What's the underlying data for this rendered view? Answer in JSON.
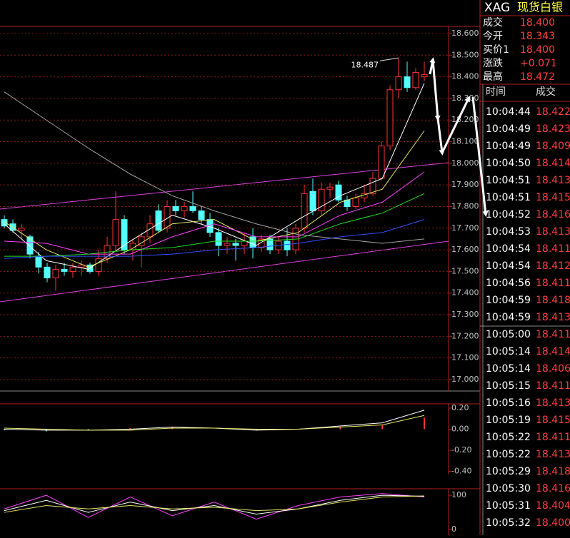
{
  "chart_data": [
    {
      "type": "candlestick",
      "open": [
        17.74,
        17.72,
        17.69,
        17.66,
        17.57,
        17.52,
        17.47,
        17.51,
        17.5,
        17.52,
        17.53,
        17.5,
        17.56,
        17.62,
        17.74,
        17.6,
        17.62,
        17.66,
        17.78,
        17.7,
        17.8,
        17.78,
        17.8,
        17.78,
        17.74,
        17.68,
        17.62,
        17.63,
        17.62,
        17.66,
        17.61,
        17.65,
        17.6,
        17.64,
        17.6,
        17.7,
        17.87,
        17.78,
        17.88,
        17.9,
        17.83,
        17.8,
        17.84,
        17.86,
        17.93,
        18.08,
        18.34,
        18.4,
        18.35,
        18.4
      ],
      "high": [
        17.76,
        17.74,
        17.72,
        17.67,
        17.59,
        17.54,
        17.53,
        17.54,
        17.54,
        17.55,
        17.54,
        17.6,
        17.66,
        17.87,
        17.76,
        17.65,
        17.68,
        17.76,
        17.81,
        17.83,
        17.83,
        17.82,
        17.87,
        17.8,
        17.77,
        17.7,
        17.66,
        17.65,
        17.68,
        17.7,
        17.67,
        17.67,
        17.66,
        17.7,
        17.72,
        17.9,
        17.93,
        17.91,
        17.91,
        17.92,
        17.85,
        17.86,
        17.9,
        17.96,
        18.1,
        18.36,
        18.487,
        18.47,
        18.44,
        18.47
      ],
      "low": [
        17.7,
        17.68,
        17.65,
        17.56,
        17.49,
        17.45,
        17.41,
        17.48,
        17.47,
        17.48,
        17.49,
        17.48,
        17.54,
        17.6,
        17.58,
        17.55,
        17.52,
        17.63,
        17.68,
        17.68,
        17.76,
        17.75,
        17.77,
        17.72,
        17.66,
        17.57,
        17.58,
        17.55,
        17.58,
        17.56,
        17.59,
        17.58,
        17.58,
        17.57,
        17.58,
        17.68,
        17.76,
        17.76,
        17.84,
        17.82,
        17.78,
        17.79,
        17.82,
        17.85,
        17.92,
        18.06,
        18.3,
        18.33,
        18.34,
        18.38
      ],
      "close": [
        17.71,
        17.69,
        17.7,
        17.58,
        17.52,
        17.47,
        17.51,
        17.5,
        17.52,
        17.53,
        17.5,
        17.56,
        17.62,
        17.74,
        17.6,
        17.63,
        17.66,
        17.72,
        17.69,
        17.8,
        17.78,
        17.8,
        17.78,
        17.74,
        17.68,
        17.62,
        17.63,
        17.62,
        17.64,
        17.61,
        17.65,
        17.6,
        17.64,
        17.6,
        17.7,
        17.86,
        17.78,
        17.88,
        17.89,
        17.83,
        17.8,
        17.84,
        17.86,
        17.93,
        18.08,
        18.34,
        18.4,
        18.35,
        18.42,
        18.41
      ],
      "up_color": "#ff3232",
      "down_color": "#54ffff",
      "series": [
        {
          "color": "#ffffff",
          "values": [
            17.72,
            17.55,
            17.51,
            17.64,
            17.76,
            17.7,
            17.62,
            17.74,
            17.85,
            17.93,
            18.37
          ]
        },
        {
          "color": "#e8e860",
          "values": [
            17.73,
            17.6,
            17.52,
            17.6,
            17.72,
            17.74,
            17.64,
            17.68,
            17.82,
            17.88,
            18.15
          ]
        },
        {
          "color": "#ff40ff",
          "values": [
            17.64,
            17.63,
            17.58,
            17.58,
            17.66,
            17.72,
            17.66,
            17.66,
            17.76,
            17.82,
            17.96
          ]
        },
        {
          "color": "#20e020",
          "values": [
            17.57,
            17.57,
            17.58,
            17.6,
            17.61,
            17.64,
            17.64,
            17.65,
            17.72,
            17.77,
            17.86
          ]
        },
        {
          "color": "#3050ff",
          "values": [
            17.56,
            17.57,
            17.57,
            17.57,
            17.58,
            17.6,
            17.61,
            17.63,
            17.66,
            17.68,
            17.74
          ]
        },
        {
          "color": "#a0a0a0",
          "values": [
            18.33,
            18.2,
            18.07,
            17.95,
            17.85,
            17.78,
            17.72,
            17.67,
            17.65,
            17.63,
            17.65
          ]
        }
      ],
      "high_marker": 18.487,
      "ylim": [
        16.947,
        18.633
      ],
      "yticks": [
        {
          "value": 17,
          "label": "17.000"
        },
        {
          "value": 17.1,
          "label": "17.100"
        },
        {
          "value": 17.2,
          "label": "17.200"
        },
        {
          "value": 17.3,
          "label": "17.300"
        },
        {
          "value": 17.4,
          "label": "17.400"
        },
        {
          "value": 17.5,
          "label": "17.500"
        },
        {
          "value": 17.6,
          "label": "17.600"
        },
        {
          "value": 17.7,
          "label": "17.700"
        },
        {
          "value": 17.8,
          "label": "17.800"
        },
        {
          "value": 17.9,
          "label": "17.900"
        },
        {
          "value": 18,
          "label": "18.000"
        },
        {
          "value": 18.1,
          "label": "18.100"
        },
        {
          "value": 18.2,
          "label": "18.200"
        },
        {
          "value": 18.3,
          "label": "18.300"
        },
        {
          "value": 18.4,
          "label": "18.400"
        },
        {
          "value": 18.5,
          "label": "18.500"
        },
        {
          "value": 18.6,
          "label": "18.600"
        }
      ],
      "grid": true
    },
    {
      "type": "line",
      "histogram": [
        -0.01,
        -0.02,
        -0.01,
        0.01,
        0.02,
        0.0,
        -0.01,
        0.0,
        0.02,
        0.04,
        0.11
      ],
      "series": [
        {
          "color": "#ffffff",
          "values": [
            0.0,
            -0.01,
            -0.01,
            0.0,
            0.02,
            0.01,
            -0.01,
            0.0,
            0.03,
            0.06,
            0.18
          ]
        },
        {
          "color": "#e8e860",
          "values": [
            0.01,
            0.0,
            -0.01,
            -0.01,
            0.01,
            0.01,
            0.0,
            0.0,
            0.02,
            0.04,
            0.13
          ]
        }
      ],
      "ylim": [
        -0.41,
        0.24
      ],
      "yticks": [
        {
          "value": 0.2,
          "label": "0.20"
        },
        {
          "value": 0,
          "label": "0.00"
        },
        {
          "value": -0.2,
          "label": "-0.20"
        },
        {
          "value": -0.4,
          "label": "-0.40"
        }
      ],
      "grid": false
    },
    {
      "type": "line",
      "series": [
        {
          "color": "#ff40ff",
          "values": [
            60,
            100,
            35,
            95,
            40,
            80,
            30,
            70,
            95,
            105,
            95
          ]
        },
        {
          "color": "#ffffff",
          "values": [
            55,
            85,
            50,
            80,
            55,
            70,
            45,
            60,
            85,
            100,
            97
          ]
        },
        {
          "color": "#e8e860",
          "values": [
            50,
            70,
            60,
            70,
            60,
            65,
            55,
            60,
            80,
            95,
            98
          ]
        }
      ],
      "ylim": [
        -12.5,
        119
      ],
      "yticks": [
        100,
        0
      ],
      "grid": false
    }
  ],
  "quote": {
    "symbol": "XAG",
    "name": "现货白银",
    "fields": [
      [
        "成交",
        "18.400"
      ],
      [
        "今开",
        "18.343"
      ],
      [
        "买价1",
        "18.400"
      ],
      [
        "涨跌",
        "+0.071"
      ],
      [
        "最高",
        "18.472"
      ]
    ]
  },
  "trades": {
    "header": [
      "时间",
      "成交"
    ],
    "rows": [
      [
        "10:04:44",
        "18.422"
      ],
      [
        "10:04:49",
        "18.423"
      ],
      [
        "10:04:49",
        "18.409"
      ],
      [
        "10:04:50",
        "18.414"
      ],
      [
        "10:04:51",
        "18.413"
      ],
      [
        "10:04:51",
        "18.415"
      ],
      [
        "10:04:52",
        "18.416"
      ],
      [
        "10:04:53",
        "18.413"
      ],
      [
        "10:04:54",
        "18.411"
      ],
      [
        "10:04:54",
        "18.412"
      ],
      [
        "10:04:56",
        "18.411"
      ],
      [
        "10:04:59",
        "18.418"
      ],
      [
        "10:04:59",
        "18.413"
      ],
      [
        "10:05:00",
        "18.411"
      ],
      [
        "10:05:14",
        "18.414"
      ],
      [
        "10:05:14",
        "18.406"
      ],
      [
        "10:05:15",
        "18.411"
      ],
      [
        "10:05:16",
        "18.413"
      ],
      [
        "10:05:19",
        "18.415"
      ],
      [
        "10:05:22",
        "18.411"
      ],
      [
        "10:05:22",
        "18.413"
      ],
      [
        "10:05:29",
        "18.418"
      ],
      [
        "10:05:30",
        "18.416"
      ],
      [
        "10:05:31",
        "18.404"
      ],
      [
        "10:05:32",
        "18.400"
      ]
    ]
  }
}
